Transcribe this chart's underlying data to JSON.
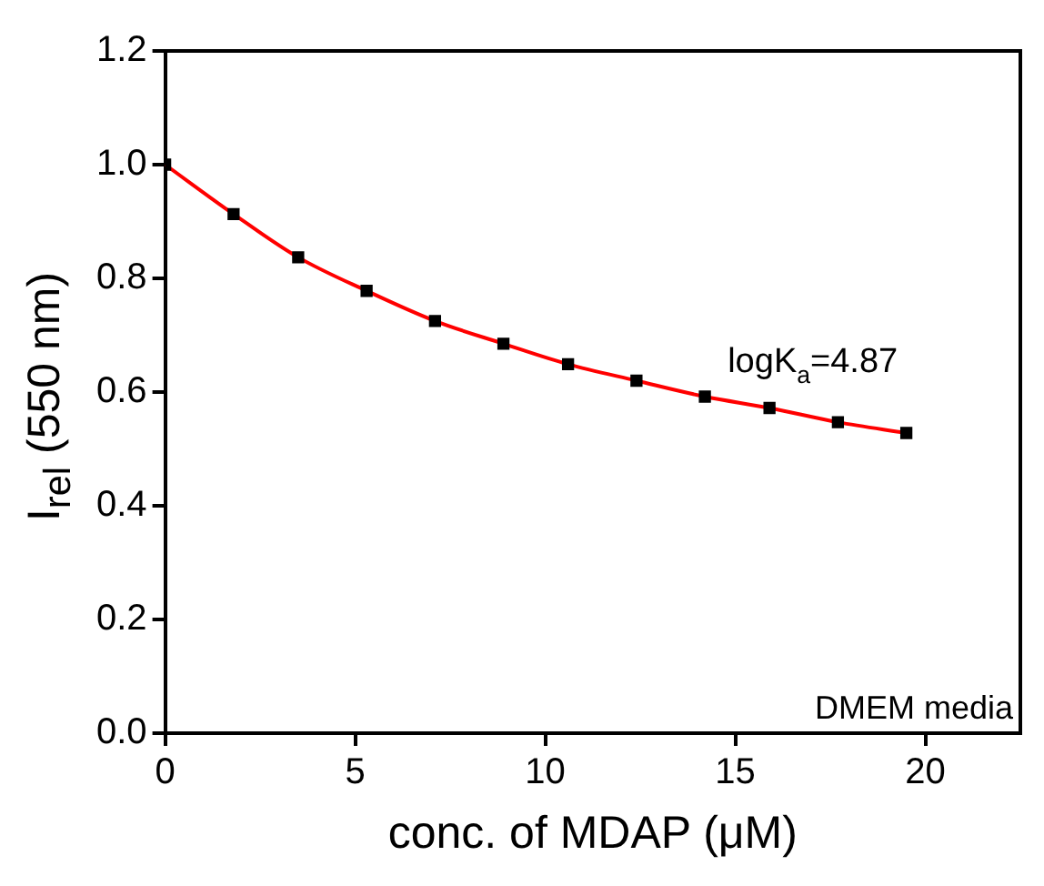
{
  "chart_data": {
    "type": "scatter",
    "xlabel": "conc. of MDAP (μM)",
    "ylabel": "I$_{rel}$ (550 nm)",
    "x": [
      0,
      1.8,
      3.5,
      5.3,
      7.1,
      8.9,
      10.6,
      12.4,
      14.2,
      15.9,
      17.7,
      19.5
    ],
    "series": [
      {
        "type": "scatter",
        "color": "#000000",
        "marker": "square",
        "values": [
          1.0,
          0.913,
          0.837,
          0.778,
          0.725,
          0.685,
          0.649,
          0.62,
          0.592,
          0.572,
          0.547,
          0.528
        ]
      },
      {
        "type": "line",
        "color": "#ff0000",
        "marker": "none",
        "line_style": "solid",
        "values": [
          1.0,
          0.913,
          0.837,
          0.778,
          0.725,
          0.685,
          0.649,
          0.62,
          0.592,
          0.572,
          0.547,
          0.528
        ]
      }
    ],
    "annotations": [
      "logK$_{a}$=4.87",
      "DMEM media"
    ],
    "xlim": [
      0,
      22.5
    ],
    "xticks": [
      0,
      5,
      10,
      15,
      20
    ],
    "ylim": [
      0,
      1.2
    ],
    "yticks": [
      {
        "value": 0,
        "label": "0.0"
      },
      0.2,
      0.4,
      0.6,
      0.8,
      {
        "value": 1,
        "label": "1.0"
      },
      1.2
    ],
    "grid": false,
    "legend": false
  }
}
